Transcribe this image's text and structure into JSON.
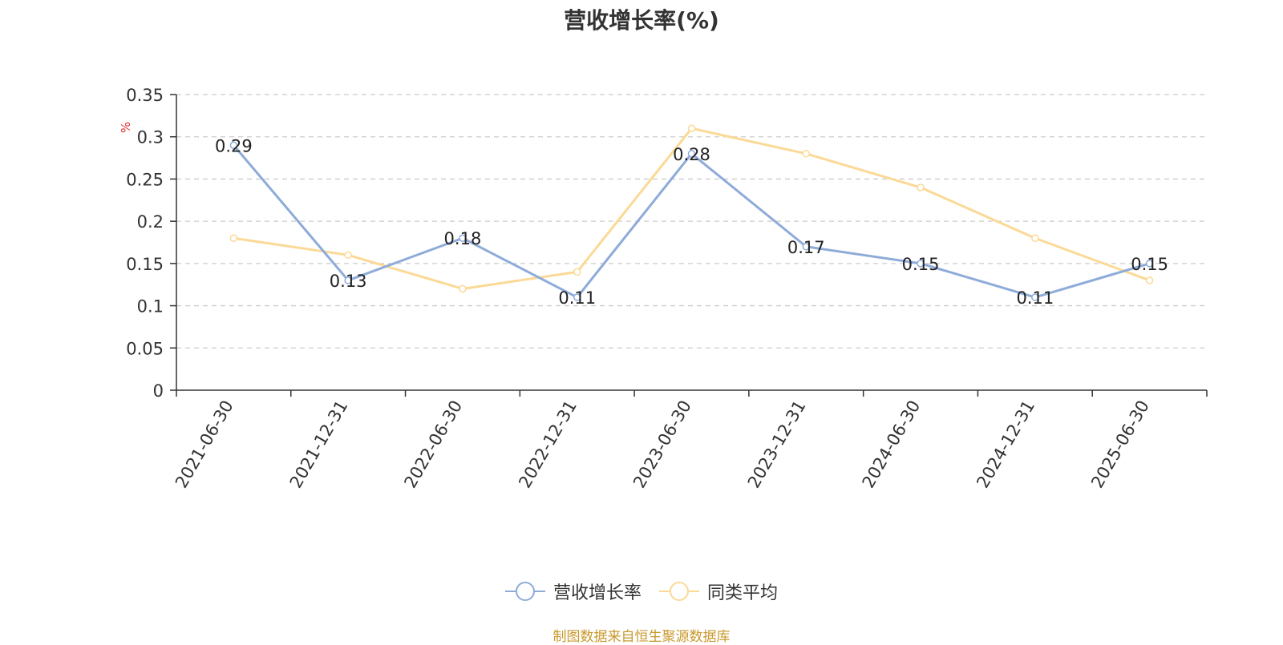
{
  "title": "营收增长率(%)",
  "source": "制图数据来自恒生聚源数据库",
  "colors": {
    "series1": "#8eabd9",
    "series2": "#fbd996",
    "unit": "#e03030",
    "source": "#c8992c",
    "grid": "#cccccc",
    "axis": "#333333"
  },
  "chart_data": {
    "type": "line",
    "title": "营收增长率(%)",
    "ylabel": "%",
    "ylim": [
      0,
      0.35
    ],
    "yticks": [
      "0",
      "0.05",
      "0.1",
      "0.15",
      "0.2",
      "0.25",
      "0.3",
      "0.35"
    ],
    "grid": true,
    "legend_position": "bottom",
    "categories": [
      "2021-06-30",
      "2021-12-31",
      "2022-06-30",
      "2022-12-31",
      "2023-06-30",
      "2023-12-31",
      "2024-06-30",
      "2024-12-31",
      "2025-06-30"
    ],
    "series": [
      {
        "name": "营收增长率",
        "values": [
          0.29,
          0.13,
          0.18,
          0.11,
          0.28,
          0.17,
          0.15,
          0.11,
          0.15
        ],
        "labels": [
          "0.29",
          "0.13",
          "0.18",
          "0.11",
          "0.28",
          "0.17",
          "0.15",
          "0.11",
          "0.15"
        ]
      },
      {
        "name": "同类平均",
        "values": [
          0.18,
          0.16,
          0.12,
          0.14,
          0.31,
          0.28,
          0.24,
          0.18,
          0.13
        ]
      }
    ]
  }
}
